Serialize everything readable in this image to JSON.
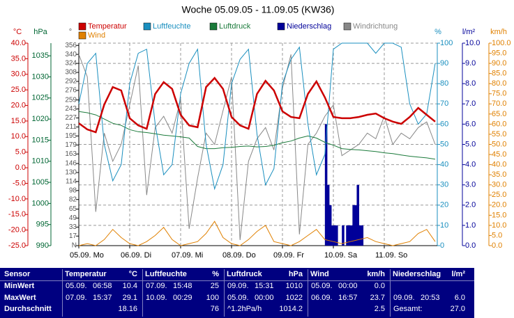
{
  "chart_data": {
    "type": "line",
    "title": "Woche 05.09.05 - 11.09.05 (KW36)",
    "x": [
      0,
      4,
      8,
      12,
      16,
      20,
      24,
      28,
      32,
      36,
      40,
      44,
      48,
      52,
      56,
      60,
      64,
      68,
      72,
      76,
      80,
      84,
      88,
      92,
      96,
      100,
      104,
      108,
      112,
      116,
      120,
      124,
      128,
      132,
      136,
      140,
      144,
      148,
      152,
      156,
      160,
      164,
      168
    ],
    "xlim": [
      0,
      168
    ],
    "xticks": [
      {
        "value": 0,
        "label": "05.09. Mo"
      },
      {
        "value": 24,
        "label": "06.09. Di"
      },
      {
        "value": 48,
        "label": "07.09. Mi"
      },
      {
        "value": 72,
        "label": "08.09. Do"
      },
      {
        "value": 96,
        "label": "09.09. Fr"
      },
      {
        "value": 120,
        "label": "10.09. Sa"
      },
      {
        "value": 144,
        "label": "11.09. So"
      }
    ],
    "grid": true,
    "grid_axis": 3,
    "axes": [
      {
        "label": "°C",
        "color": "#cc0000",
        "lim": [
          -25,
          40
        ],
        "ticks": [
          {
            "value": -25,
            "label": "-25.0"
          },
          {
            "value": -20,
            "label": "-20.0"
          },
          {
            "value": -15,
            "label": "-15.0"
          },
          {
            "value": -10,
            "label": "-10.0"
          },
          {
            "value": -5,
            "label": "-5.0"
          },
          {
            "value": 0,
            "label": "0.0"
          },
          {
            "value": 5,
            "label": "5.0"
          },
          {
            "value": 10,
            "label": "10.0"
          },
          {
            "value": 15,
            "label": "15.0"
          },
          {
            "value": 20,
            "label": "20.0"
          },
          {
            "value": 25,
            "label": "25.0"
          },
          {
            "value": 30,
            "label": "30.0"
          },
          {
            "value": 35,
            "label": "35.0"
          },
          {
            "value": 40,
            "label": "40.0"
          }
        ]
      },
      {
        "label": "hPa",
        "color": "#006633",
        "lim": [
          990,
          1038
        ],
        "ticks": [
          990,
          995,
          1000,
          1005,
          1010,
          1015,
          1020,
          1025,
          1030,
          1035
        ]
      },
      {
        "label": "°",
        "color": "#555555",
        "lim": [
          0,
          360
        ],
        "ticks": [
          {
            "value": 0,
            "label": "N"
          },
          17,
          33,
          49,
          65,
          82,
          98,
          114,
          130,
          146,
          163,
          179,
          195,
          211,
          227,
          243,
          259,
          276,
          292,
          308,
          324,
          340,
          356
        ]
      },
      {
        "label": "%",
        "color": "#1a8fbf",
        "lim": [
          0,
          100
        ],
        "ticks": [
          0,
          10,
          20,
          30,
          40,
          50,
          60,
          70,
          80,
          90,
          100
        ]
      },
      {
        "label": "l/m²",
        "color": "#000099",
        "lim": [
          0,
          10
        ],
        "ticks": [
          {
            "value": 0,
            "label": "0.0"
          },
          {
            "value": 1,
            "label": "1.0"
          },
          {
            "value": 2,
            "label": "2.0"
          },
          {
            "value": 3,
            "label": "3.0"
          },
          {
            "value": 4,
            "label": "4.0"
          },
          {
            "value": 5,
            "label": "5.0"
          },
          {
            "value": 6,
            "label": "6.0"
          },
          {
            "value": 7,
            "label": "7.0"
          },
          {
            "value": 8,
            "label": "8.0"
          },
          {
            "value": 9,
            "label": "9.0"
          },
          {
            "value": 10,
            "label": "10.0"
          }
        ]
      },
      {
        "label": "km/h",
        "color": "#e08000",
        "lim": [
          0,
          100
        ],
        "ticks": [
          {
            "value": 0,
            "label": "0.0"
          },
          {
            "value": 5,
            "label": "5.0"
          },
          {
            "value": 10,
            "label": "10.0"
          },
          {
            "value": 15,
            "label": "15.0"
          },
          {
            "value": 20,
            "label": "20.0"
          },
          {
            "value": 25,
            "label": "25.0"
          },
          {
            "value": 30,
            "label": "30.0"
          },
          {
            "value": 35,
            "label": "35.0"
          },
          {
            "value": 40,
            "label": "40.0"
          },
          {
            "value": 45,
            "label": "45.0"
          },
          {
            "value": 50,
            "label": "50.0"
          },
          {
            "value": 55,
            "label": "55.0"
          },
          {
            "value": 60,
            "label": "60.0"
          },
          {
            "value": 65,
            "label": "65.0"
          },
          {
            "value": 70,
            "label": "70.0"
          },
          {
            "value": 75,
            "label": "75.0"
          },
          {
            "value": 80,
            "label": "80.0"
          },
          {
            "value": 85,
            "label": "85.0"
          },
          {
            "value": 90,
            "label": "90.0"
          },
          {
            "value": 95,
            "label": "95.0"
          },
          {
            "value": 100,
            "label": "100.0"
          }
        ]
      }
    ],
    "series": [
      {
        "name": "Temperatur",
        "color": "#cc0000",
        "axis": 0,
        "kind": "line",
        "values": [
          14.3,
          12.3,
          11.4,
          20.3,
          25.9,
          24.8,
          15.9,
          13.6,
          12.5,
          23.7,
          27.5,
          25.3,
          17,
          13.6,
          13,
          25.9,
          28.8,
          25.3,
          16.3,
          13.6,
          12.5,
          23.7,
          27.9,
          24.8,
          18.1,
          16.3,
          15.9,
          23.7,
          27.7,
          22.6,
          16.3,
          15.9,
          15.9,
          16.3,
          17,
          17.4,
          15.9,
          14.8,
          14.1,
          16.3,
          19.2,
          17,
          14.8
        ]
      },
      {
        "name": "Luftfeuchte",
        "color": "#1a8fbf",
        "axis": 3,
        "kind": "line",
        "values": [
          70,
          90,
          95,
          50,
          32,
          40,
          80,
          95,
          97,
          60,
          35,
          40,
          75,
          90,
          97,
          50,
          28,
          40,
          80,
          92,
          97,
          55,
          30,
          38,
          80,
          92,
          98,
          60,
          35,
          45,
          97,
          100,
          100,
          100,
          100,
          95,
          100,
          100,
          98,
          70,
          60,
          65,
          90
        ]
      },
      {
        "name": "Luftdruck",
        "color": "#1a7a3a",
        "axis": 1,
        "kind": "line",
        "values": [
          1021.8,
          1021.5,
          1021,
          1020,
          1019,
          1018.5,
          1017.5,
          1017,
          1016.8,
          1016.5,
          1016.2,
          1016,
          1015.8,
          1015.5,
          1013.5,
          1013,
          1013,
          1013.2,
          1013.3,
          1013.5,
          1013.6,
          1013.4,
          1013.5,
          1013.8,
          1014.4,
          1014.8,
          1015.5,
          1016,
          1015.5,
          1014.5,
          1013.8,
          1013,
          1012.8,
          1012.7,
          1012.5,
          1012.3,
          1012,
          1011.8,
          1011.5,
          1011.2,
          1011,
          1010.8,
          1010.5
        ]
      },
      {
        "name": "Niederschlag",
        "color": "#000099",
        "axis": 4,
        "kind": "bar",
        "x": [
          116,
          117,
          118,
          119,
          120,
          121,
          124,
          126,
          127,
          128,
          129,
          130,
          131,
          132,
          133
        ],
        "values": [
          6,
          3,
          2,
          1,
          1,
          1,
          1,
          1,
          1,
          1,
          2,
          2,
          3,
          1,
          1
        ]
      },
      {
        "name": "Windrichtung",
        "color": "#888888",
        "axis": 2,
        "kind": "line",
        "values": [
          340,
          300,
          60,
          200,
          150,
          180,
          250,
          320,
          90,
          210,
          230,
          200,
          260,
          30,
          120,
          200,
          180,
          240,
          300,
          10,
          150,
          190,
          210,
          170,
          280,
          340,
          20,
          180,
          200,
          230,
          250,
          160,
          170,
          180,
          200,
          190,
          230,
          180,
          200,
          190,
          210,
          220,
          180
        ]
      },
      {
        "name": "Wind",
        "color": "#e08000",
        "axis": 5,
        "kind": "line",
        "values": [
          0,
          1,
          0,
          3,
          8,
          4,
          1,
          0,
          2,
          5,
          9,
          3,
          0,
          1,
          2,
          6,
          12,
          4,
          1,
          0,
          3,
          7,
          10,
          2,
          1,
          0,
          2,
          5,
          8,
          3,
          2,
          1,
          2,
          3,
          4,
          2,
          1,
          0,
          1,
          2,
          6,
          8,
          2
        ]
      }
    ]
  },
  "table": {
    "headers": [
      {
        "name": "Sensor"
      },
      {
        "name": "Temperatur",
        "unit": "°C"
      },
      {
        "name": "Luftfeuchte",
        "unit": "%"
      },
      {
        "name": "Luftdruck",
        "unit": "hPa"
      },
      {
        "name": "Wind",
        "unit": "km/h"
      },
      {
        "name": "Niederschlag",
        "unit": "l/m²"
      }
    ],
    "rows": [
      {
        "label": "MinWert",
        "cells": [
          [
            "05.09.",
            "06:58",
            "10.4"
          ],
          [
            "07.09.",
            "15:48",
            "25"
          ],
          [
            "09.09.",
            "15:31",
            "1010"
          ],
          [
            "05.09.",
            "00:00",
            "0.0"
          ],
          null
        ]
      },
      {
        "label": "MaxWert",
        "cells": [
          [
            "07.09.",
            "15:37",
            "29.1"
          ],
          [
            "10.09.",
            "00:29",
            "100"
          ],
          [
            "05.09.",
            "00:00",
            "1022"
          ],
          [
            "06.09.",
            "16:57",
            "23.7"
          ],
          [
            "09.09.",
            "20:53",
            "6.0"
          ]
        ]
      },
      {
        "label": "Durchschnitt",
        "cells": [
          [
            "18.16"
          ],
          [
            "76"
          ],
          [
            "^1.2hPa/h",
            "1014.2"
          ],
          [
            "2.5"
          ],
          [
            "Gesamt:",
            "27.0"
          ]
        ]
      }
    ]
  }
}
